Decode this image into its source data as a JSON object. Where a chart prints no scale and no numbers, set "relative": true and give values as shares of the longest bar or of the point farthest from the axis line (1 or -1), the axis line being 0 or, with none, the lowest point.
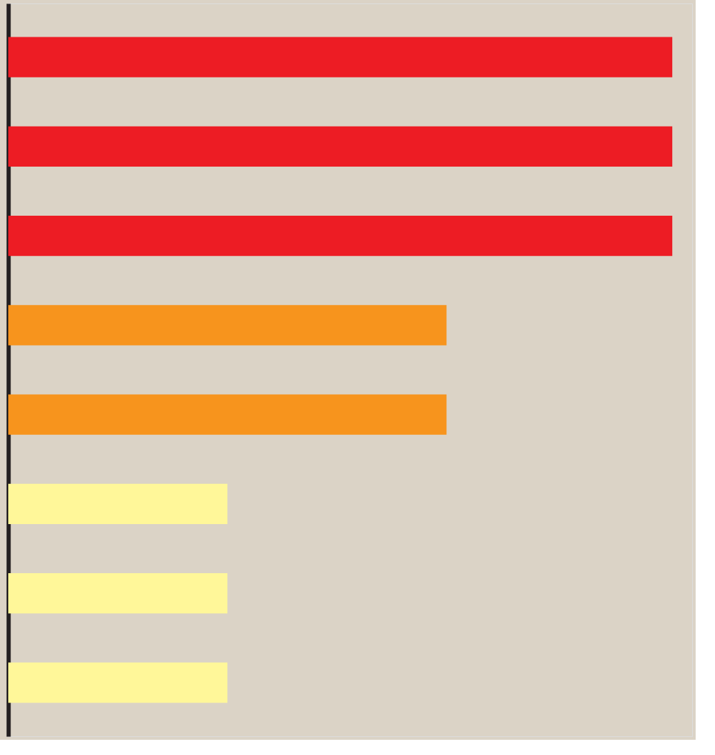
{
  "chart_data": {
    "type": "bar",
    "orientation": "horizontal",
    "relative": true,
    "categories": [
      null,
      null,
      null,
      null,
      null,
      null,
      null,
      null
    ],
    "values": [
      1,
      1,
      1,
      0.66,
      0.66,
      0.33,
      0.33,
      0.33
    ],
    "colors": [
      "#ed1c24",
      "#ed1c24",
      "#ed1c24",
      "#f7941d",
      "#f7941d",
      "#fff799",
      "#fff799",
      "#fff799"
    ],
    "tick_labels": false
  }
}
